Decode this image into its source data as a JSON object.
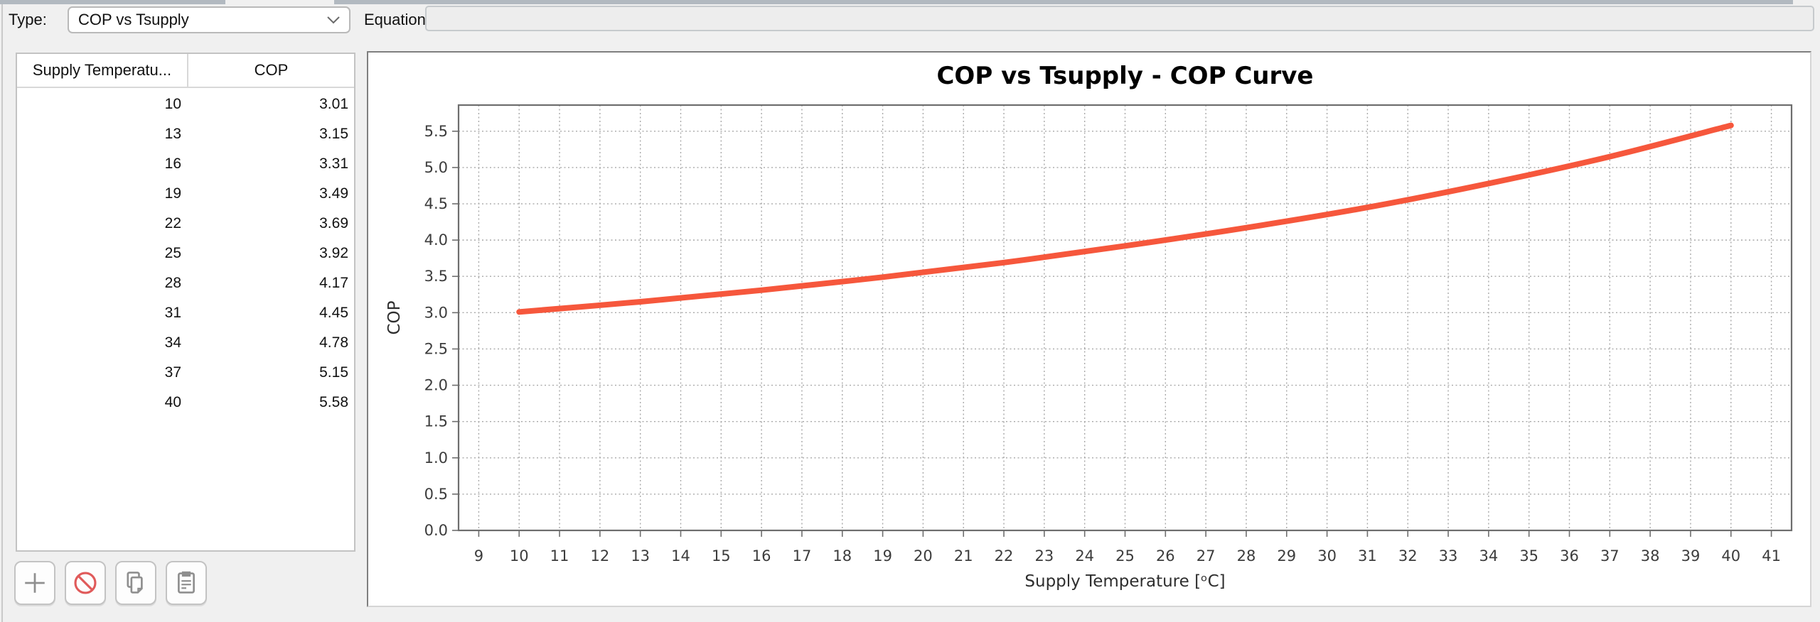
{
  "toolbar": {
    "type_label": "Type:",
    "type_value": "COP vs Tsupply",
    "equation_label": "Equation:",
    "equation_value": ""
  },
  "table": {
    "columns": [
      "Supply Temperatu...",
      "COP"
    ],
    "rows": [
      [
        "10",
        "3.01"
      ],
      [
        "13",
        "3.15"
      ],
      [
        "16",
        "3.31"
      ],
      [
        "19",
        "3.49"
      ],
      [
        "22",
        "3.69"
      ],
      [
        "25",
        "3.92"
      ],
      [
        "28",
        "4.17"
      ],
      [
        "31",
        "4.45"
      ],
      [
        "34",
        "4.78"
      ],
      [
        "37",
        "5.15"
      ],
      [
        "40",
        "5.58"
      ]
    ]
  },
  "actions": [
    {
      "id": "add-row",
      "icon": "plus-icon"
    },
    {
      "id": "delete-row",
      "icon": "ban-icon"
    },
    {
      "id": "copy",
      "icon": "copy-icon"
    },
    {
      "id": "paste",
      "icon": "paste-icon"
    }
  ],
  "colors": {
    "curve": "#F6573C",
    "grid": "#A8A8A8",
    "spine": "#6E6E6E",
    "tick_text": "#3C3C3C",
    "ban_red": "#E05A5A",
    "icon_gray": "#8F8F8F"
  },
  "chart_data": {
    "type": "line",
    "title": "COP vs Tsupply - COP Curve",
    "xlabel": "Supply Temperature [ᵒC]",
    "ylabel": "COP",
    "x": [
      10,
      13,
      16,
      19,
      22,
      25,
      28,
      31,
      34,
      37,
      40
    ],
    "values": [
      3.01,
      3.15,
      3.31,
      3.49,
      3.69,
      3.92,
      4.17,
      4.45,
      4.78,
      5.15,
      5.58
    ],
    "series_name": "COP Curve",
    "xlim": [
      8.5,
      41.5
    ],
    "ylim": [
      0,
      5.86
    ],
    "xticks": [
      9,
      10,
      11,
      12,
      13,
      14,
      15,
      16,
      17,
      18,
      19,
      20,
      21,
      22,
      23,
      24,
      25,
      26,
      27,
      28,
      29,
      30,
      31,
      32,
      33,
      34,
      35,
      36,
      37,
      38,
      39,
      40,
      41
    ],
    "yticks": [
      0.0,
      0.5,
      1.0,
      1.5,
      2.0,
      2.5,
      3.0,
      3.5,
      4.0,
      4.5,
      5.0,
      5.5
    ],
    "grid": true,
    "grid_style": "dashed",
    "legend_position": "none",
    "line_color": "#F6573C",
    "line_width": 8
  }
}
